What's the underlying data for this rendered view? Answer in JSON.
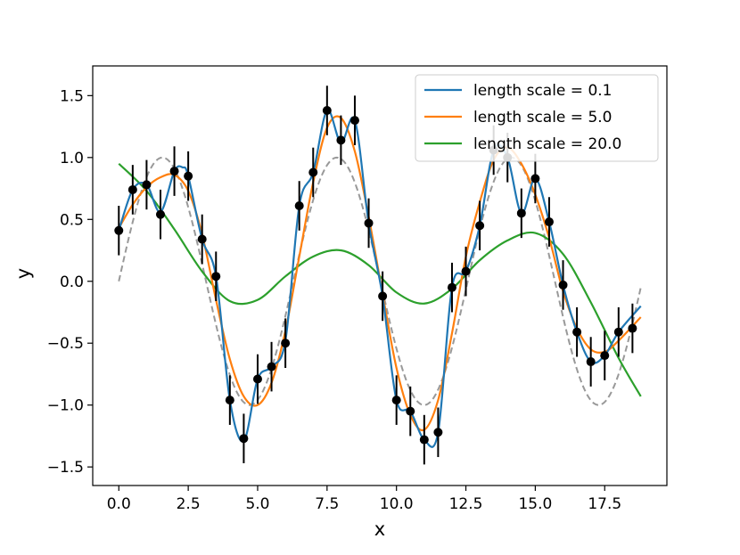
{
  "chart_data": {
    "type": "line",
    "title": "",
    "xlabel": "x",
    "ylabel": "y",
    "xlim": [
      -0.94,
      19.74
    ],
    "ylim": [
      -1.65,
      1.74
    ],
    "xticks": [
      0.0,
      2.5,
      5.0,
      7.5,
      10.0,
      12.5,
      15.0,
      17.5
    ],
    "xtick_labels": [
      "0.0",
      "2.5",
      "5.0",
      "7.5",
      "10.0",
      "12.5",
      "15.0",
      "17.5"
    ],
    "yticks": [
      -1.5,
      -1.0,
      -0.5,
      0.0,
      0.5,
      1.0,
      1.5
    ],
    "ytick_labels": [
      "−1.5",
      "−1.0",
      "−0.5",
      "0.0",
      "0.5",
      "1.0",
      "1.5"
    ],
    "legend_position": "top-right",
    "true_function": {
      "name": "sin(x)",
      "style": "dashed",
      "color": "#999999",
      "x_range": [
        0,
        18.8
      ]
    },
    "observations": {
      "color": "#000000",
      "x": [
        0.0,
        0.5,
        1.0,
        1.5,
        2.0,
        2.5,
        3.0,
        3.5,
        4.0,
        4.5,
        5.0,
        5.5,
        6.0,
        6.5,
        7.0,
        7.5,
        8.0,
        8.5,
        9.0,
        9.5,
        10.0,
        10.5,
        11.0,
        11.5,
        12.0,
        12.5,
        13.0,
        13.5,
        14.0,
        14.5,
        15.0,
        15.5,
        16.0,
        16.5,
        17.0,
        17.5,
        18.0,
        18.5
      ],
      "y": [
        0.41,
        0.74,
        0.78,
        0.54,
        0.89,
        0.85,
        0.34,
        0.04,
        -0.96,
        -1.27,
        -0.79,
        -0.69,
        -0.5,
        0.61,
        0.88,
        1.38,
        1.14,
        1.3,
        0.47,
        -0.12,
        -0.96,
        -1.05,
        -1.28,
        -1.22,
        -0.05,
        0.08,
        0.45,
        1.06,
        1.0,
        0.55,
        0.83,
        0.48,
        -0.03,
        -0.41,
        -0.65,
        -0.6,
        -0.41,
        -0.38
      ],
      "error": 0.2
    },
    "series": [
      {
        "name": "length scale = 0.1",
        "color": "#1f77b4",
        "x": [
          0.0,
          0.5,
          1.0,
          1.5,
          2.0,
          2.3,
          2.5,
          3.0,
          3.5,
          4.0,
          4.5,
          5.0,
          5.5,
          6.0,
          6.5,
          7.0,
          7.5,
          8.0,
          8.5,
          9.0,
          9.5,
          10.0,
          10.5,
          11.0,
          11.5,
          12.0,
          12.5,
          13.0,
          13.5,
          14.0,
          14.5,
          15.0,
          15.5,
          16.0,
          16.5,
          17.0,
          17.5,
          18.0,
          18.8
        ],
        "y": [
          0.41,
          0.74,
          0.78,
          0.56,
          0.89,
          0.92,
          0.85,
          0.34,
          0.04,
          -0.96,
          -1.29,
          -0.79,
          -0.69,
          -0.48,
          0.61,
          0.88,
          1.38,
          1.12,
          1.3,
          0.47,
          -0.12,
          -0.96,
          -1.05,
          -1.28,
          -1.22,
          -0.05,
          0.08,
          0.45,
          1.06,
          1.0,
          0.55,
          0.83,
          0.48,
          -0.03,
          -0.41,
          -0.65,
          -0.6,
          -0.41,
          -0.2
        ]
      },
      {
        "name": "length scale = 5.0",
        "color": "#ff7f0e",
        "x": [
          0.0,
          0.5,
          1.0,
          1.5,
          2.0,
          2.5,
          3.0,
          3.5,
          4.0,
          4.5,
          5.0,
          5.5,
          6.0,
          6.5,
          7.0,
          7.5,
          8.0,
          8.5,
          9.0,
          9.5,
          10.0,
          10.5,
          11.0,
          11.5,
          12.0,
          12.5,
          13.0,
          13.5,
          14.0,
          14.5,
          15.0,
          15.5,
          16.0,
          16.5,
          17.0,
          17.5,
          18.0,
          18.8
        ],
        "y": [
          0.43,
          0.62,
          0.76,
          0.84,
          0.86,
          0.73,
          0.38,
          -0.15,
          -0.63,
          -0.93,
          -1.0,
          -0.82,
          -0.4,
          0.2,
          0.8,
          1.24,
          1.32,
          1.05,
          0.52,
          -0.1,
          -0.7,
          -1.08,
          -1.2,
          -0.96,
          -0.42,
          0.2,
          0.64,
          0.98,
          1.08,
          0.95,
          0.7,
          0.35,
          -0.08,
          -0.38,
          -0.55,
          -0.57,
          -0.48,
          -0.29
        ]
      },
      {
        "name": "length scale = 20.0",
        "color": "#2ca02c",
        "x": [
          0.0,
          1.0,
          2.0,
          3.0,
          4.0,
          5.0,
          6.0,
          7.0,
          8.0,
          9.0,
          10.0,
          11.0,
          12.0,
          13.0,
          14.0,
          15.0,
          16.0,
          17.0,
          18.0,
          18.8
        ],
        "y": [
          0.95,
          0.73,
          0.42,
          0.08,
          -0.16,
          -0.15,
          0.04,
          0.2,
          0.25,
          0.13,
          -0.09,
          -0.18,
          -0.06,
          0.17,
          0.33,
          0.39,
          0.22,
          -0.17,
          -0.62,
          -0.93
        ]
      }
    ]
  }
}
